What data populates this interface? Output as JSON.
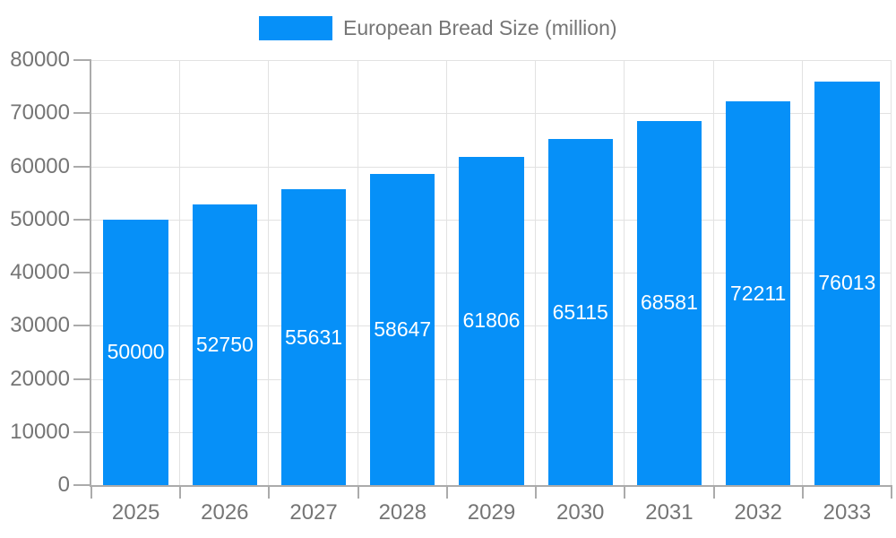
{
  "legend": {
    "label": "European Bread Size (million)"
  },
  "colors": {
    "bar": "#0690f8",
    "grid": "#e2e2e2",
    "axis": "#ababab",
    "text": "#757575",
    "value_text": "#ffffff",
    "background": "#ffffff"
  },
  "chart_data": {
    "type": "bar",
    "title": "European Bread Size (million)",
    "categories": [
      "2025",
      "2026",
      "2027",
      "2028",
      "2029",
      "2030",
      "2031",
      "2032",
      "2033"
    ],
    "values": [
      50000,
      52750,
      55631,
      58647,
      61806,
      65115,
      68581,
      72211,
      76013
    ],
    "xlabel": "",
    "ylabel": "",
    "ylim": [
      0,
      80000
    ],
    "yticks": [
      0,
      10000,
      20000,
      30000,
      40000,
      50000,
      60000,
      70000,
      80000
    ],
    "grid": true,
    "legend_position": "top-center",
    "value_label_position": "inside-center"
  }
}
